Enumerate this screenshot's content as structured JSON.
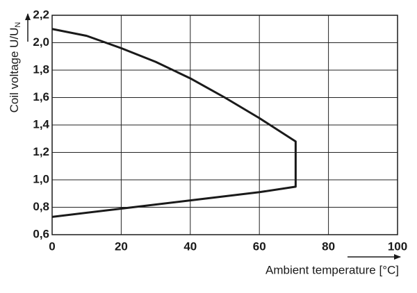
{
  "chart_data": {
    "type": "line",
    "ylabel": "Coil voltage U/U",
    "ylabel_subscript": "N",
    "xlabel": "Ambient temperature [°C]",
    "x": [
      0,
      10,
      20,
      30,
      40,
      50,
      60,
      70.5,
      70.5,
      60,
      40,
      20,
      0
    ],
    "values": [
      2.1,
      2.05,
      1.96,
      1.86,
      1.74,
      1.6,
      1.45,
      1.28,
      0.95,
      0.91,
      0.85,
      0.79,
      0.73
    ],
    "color": "#1a1a1a",
    "xlim": [
      0,
      100
    ],
    "xticks": [
      0,
      20,
      40,
      60,
      80,
      100
    ],
    "ylim": [
      0.6,
      2.2
    ],
    "yticks": [
      {
        "value": 0.6,
        "label": "0,6"
      },
      {
        "value": 0.8,
        "label": "0,8"
      },
      {
        "value": 1.0,
        "label": "1,0"
      },
      {
        "value": 1.2,
        "label": "1,2"
      },
      {
        "value": 1.4,
        "label": "1,4"
      },
      {
        "value": 1.6,
        "label": "1,6"
      },
      {
        "value": 1.8,
        "label": "1,8"
      },
      {
        "value": 2.0,
        "label": "2,0"
      },
      {
        "value": 2.2,
        "label": "2,2"
      }
    ],
    "grid": true
  }
}
